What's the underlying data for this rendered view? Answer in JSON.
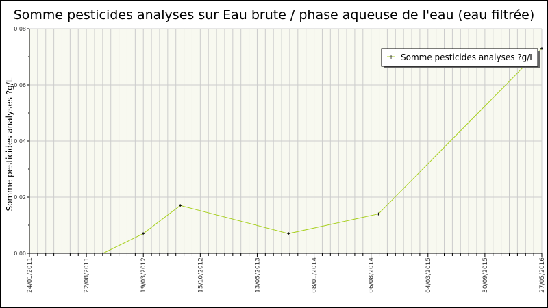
{
  "chart_data": {
    "type": "line",
    "title": "Somme pesticides analyses sur Eau brute / phase aqueuse de l'eau (eau filtrée)",
    "xlabel": "",
    "ylabel": "Somme pesticides analyses ?g/L",
    "ylim": [
      0,
      0.08
    ],
    "yticks": [
      "0.00",
      "0.02",
      "0.04",
      "0.06",
      "0.08"
    ],
    "xlim": [
      "2011-01-24",
      "2016-05-27"
    ],
    "xticks": [
      "24/01/2011",
      "22/08/2011",
      "19/03/2012",
      "15/10/2012",
      "13/05/2013",
      "08/01/2014",
      "06/08/2014",
      "04/03/2015",
      "30/09/2015",
      "27/05/2016"
    ],
    "grid": true,
    "legend_position": "top-right",
    "series": [
      {
        "name": "Somme pesticides analyses ?g/L",
        "color": "#a8d020",
        "x": [
          "2011-10-31",
          "2012-04-01",
          "2012-08-20",
          "2013-10-06",
          "2014-09-13",
          "2016-05-27"
        ],
        "y": [
          0.0,
          0.007,
          0.017,
          0.007,
          0.014,
          0.073
        ]
      }
    ]
  },
  "colors": {
    "plot_bg": "#f8f9f0",
    "grid": "#cccccc"
  }
}
